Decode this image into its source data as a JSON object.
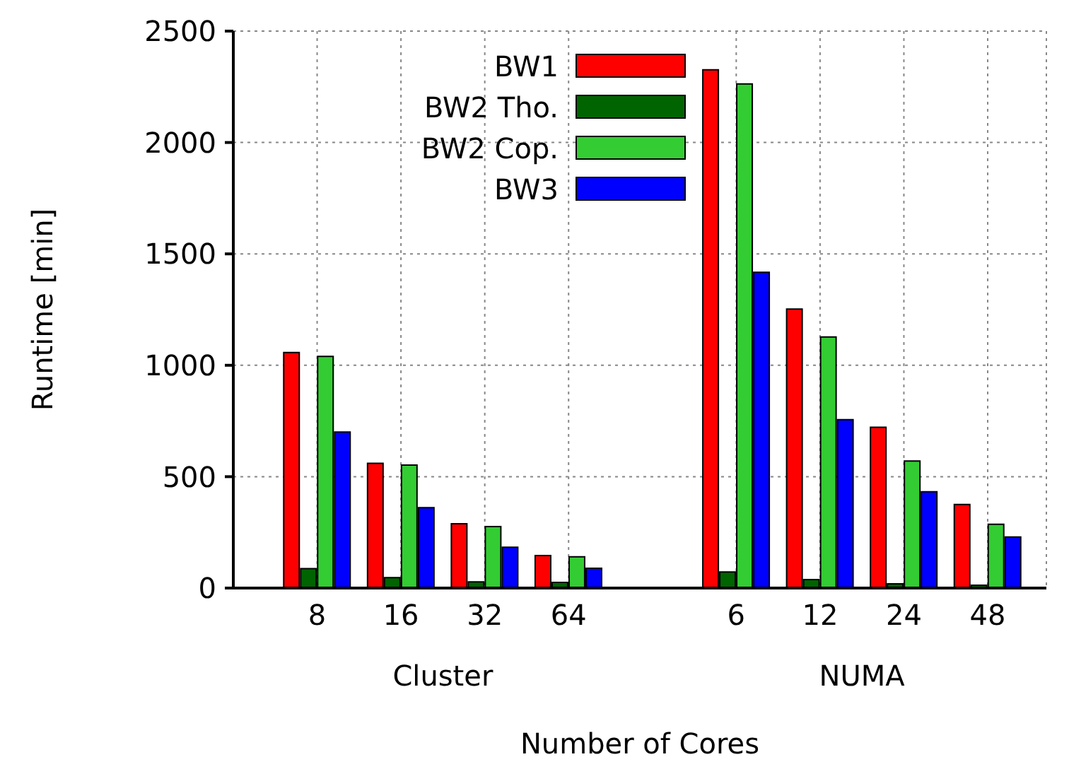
{
  "chart_data": {
    "type": "bar",
    "xlabel": "Number of Cores",
    "ylabel": "Runtime [min]",
    "categories": [
      "8",
      "16",
      "32",
      "64",
      null,
      "6",
      "12",
      "24",
      "48"
    ],
    "series": [
      {
        "name": "BW1",
        "color": "#ff0000",
        "values": [
          1057,
          560,
          289,
          146,
          null,
          2326,
          1252,
          722,
          375
        ]
      },
      {
        "name": "BW2 Tho.",
        "color": "#006400",
        "values": [
          87,
          47,
          28,
          25,
          null,
          72,
          38,
          19,
          13
        ]
      },
      {
        "name": "BW2 Cop.",
        "color": "#33cc33",
        "values": [
          1040,
          552,
          276,
          140,
          null,
          2263,
          1127,
          570,
          286
        ]
      },
      {
        "name": "BW3",
        "color": "#0000ff",
        "values": [
          700,
          361,
          183,
          89,
          null,
          1417,
          756,
          432,
          229
        ]
      }
    ],
    "annotations": [
      "Cluster",
      "NUMA"
    ],
    "ylim": [
      0,
      2500
    ],
    "yticks": [
      0,
      500,
      1000,
      1500,
      2000,
      2500
    ],
    "grid": true,
    "legend": "top left"
  }
}
